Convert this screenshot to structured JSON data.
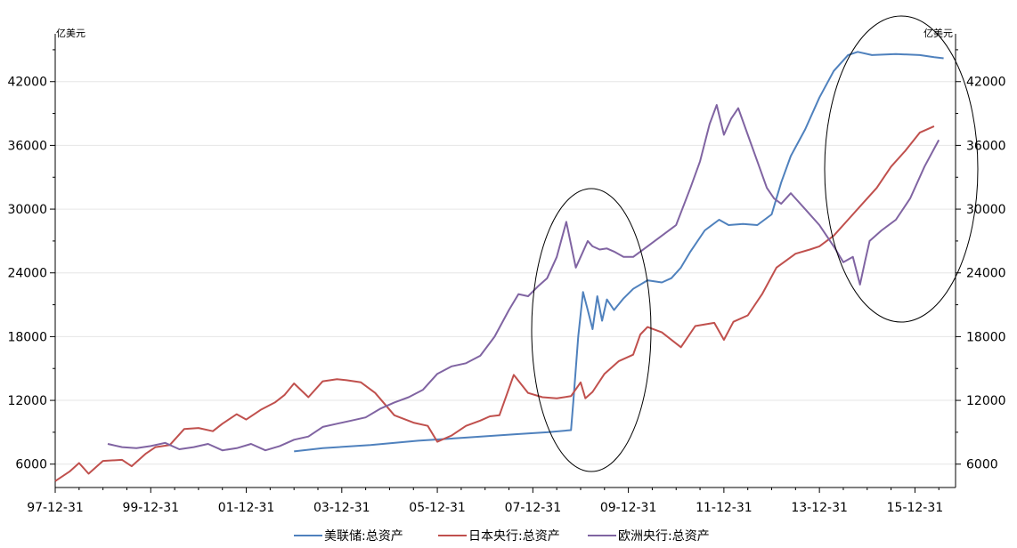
{
  "chart_data": {
    "type": "line",
    "title": "",
    "xlabel": "",
    "ylabel_left": "亿美元",
    "ylabel_right": "亿美元",
    "ylim": [
      3800,
      46500
    ],
    "y_ticks": [
      6000,
      12000,
      18000,
      24000,
      30000,
      36000,
      42000
    ],
    "y_tick_labels": [
      "6000",
      "12000",
      "18000",
      "24000",
      "30000",
      "36000",
      "42000"
    ],
    "x_range": [
      1997.9,
      2016.75
    ],
    "x_ticks": [
      1997.9,
      1999.9,
      2001.9,
      2003.9,
      2005.9,
      2007.9,
      2009.9,
      2011.9,
      2013.9,
      2015.9
    ],
    "x_tick_labels": [
      "97-12-31",
      "99-12-31",
      "01-12-31",
      "03-12-31",
      "05-12-31",
      "07-12-31",
      "09-12-31",
      "11-12-31",
      "13-12-31",
      "15-12-31"
    ],
    "grid": true,
    "legend_position": "bottom",
    "series": [
      {
        "name": "美联储:总资产",
        "color": "#4f81bd",
        "x": [
          2002.9,
          2003.5,
          2004.5,
          2005.5,
          2006.5,
          2007.5,
          2008.2,
          2008.7,
          2008.75,
          2008.85,
          2008.95,
          2009.05,
          2009.15,
          2009.25,
          2009.35,
          2009.45,
          2009.6,
          2009.8,
          2010.0,
          2010.3,
          2010.6,
          2010.8,
          2011.0,
          2011.2,
          2011.5,
          2011.8,
          2012.0,
          2012.3,
          2012.6,
          2012.9,
          2013.1,
          2013.3,
          2013.6,
          2013.9,
          2014.2,
          2014.5,
          2014.7,
          2015.0,
          2015.5,
          2016.0,
          2016.3,
          2016.5
        ],
        "y": [
          7200,
          7500,
          7800,
          8200,
          8500,
          8800,
          9000,
          9200,
          12000,
          18000,
          22200,
          20500,
          18700,
          21800,
          19500,
          21500,
          20500,
          21600,
          22500,
          23300,
          23100,
          23500,
          24500,
          26000,
          28000,
          29000,
          28500,
          28600,
          28500,
          29500,
          32500,
          35000,
          37500,
          40500,
          43000,
          44500,
          44800,
          44500,
          44600,
          44500,
          44300,
          44200
        ]
      },
      {
        "name": "日本央行:总资产",
        "color": "#c0504d",
        "x": [
          1997.9,
          1998.2,
          1998.4,
          1998.6,
          1998.9,
          1999.3,
          1999.5,
          1999.8,
          2000.0,
          2000.3,
          2000.6,
          2000.9,
          2001.2,
          2001.4,
          2001.7,
          2001.9,
          2002.2,
          2002.5,
          2002.7,
          2002.9,
          2003.2,
          2003.5,
          2003.8,
          2004.0,
          2004.3,
          2004.6,
          2005.0,
          2005.4,
          2005.7,
          2005.9,
          2006.2,
          2006.5,
          2006.8,
          2007.0,
          2007.2,
          2007.5,
          2007.8,
          2008.1,
          2008.4,
          2008.7,
          2008.9,
          2009.0,
          2009.15,
          2009.4,
          2009.7,
          2010.0,
          2010.15,
          2010.3,
          2010.6,
          2011.0,
          2011.3,
          2011.7,
          2011.9,
          2012.1,
          2012.4,
          2012.7,
          2013.0,
          2013.4,
          2013.7,
          2013.9,
          2014.2,
          2014.5,
          2014.8,
          2015.1,
          2015.4,
          2015.7,
          2016.0,
          2016.3
        ],
        "y": [
          4400,
          5300,
          6100,
          5100,
          6300,
          6400,
          5800,
          7000,
          7600,
          7800,
          9300,
          9400,
          9100,
          9800,
          10700,
          10200,
          11100,
          11800,
          12500,
          13600,
          12300,
          13800,
          14000,
          13900,
          13700,
          12700,
          10600,
          9900,
          9600,
          8100,
          8700,
          9600,
          10100,
          10500,
          10600,
          14400,
          12700,
          12300,
          12200,
          12400,
          13700,
          12200,
          12800,
          14500,
          15700,
          16300,
          18200,
          18900,
          18400,
          17000,
          19000,
          19300,
          17700,
          19400,
          20000,
          22000,
          24500,
          25800,
          26200,
          26500,
          27500,
          29000,
          30500,
          32000,
          34000,
          35500,
          37200,
          37800
        ]
      },
      {
        "name": "欧洲央行:总资产",
        "color": "#8064a2",
        "x": [
          1999.0,
          1999.3,
          1999.6,
          1999.9,
          2000.2,
          2000.5,
          2000.8,
          2001.1,
          2001.4,
          2001.7,
          2002.0,
          2002.3,
          2002.6,
          2002.9,
          2003.2,
          2003.5,
          2003.8,
          2004.1,
          2004.4,
          2004.7,
          2005.0,
          2005.3,
          2005.6,
          2005.9,
          2006.2,
          2006.5,
          2006.8,
          2007.1,
          2007.4,
          2007.6,
          2007.8,
          2008.0,
          2008.2,
          2008.4,
          2008.6,
          2008.8,
          2008.95,
          2009.05,
          2009.15,
          2009.3,
          2009.45,
          2009.6,
          2009.8,
          2010.0,
          2010.3,
          2010.6,
          2010.9,
          2011.2,
          2011.4,
          2011.6,
          2011.75,
          2011.9,
          2012.05,
          2012.2,
          2012.4,
          2012.6,
          2012.8,
          2012.95,
          2013.1,
          2013.3,
          2013.6,
          2013.9,
          2014.2,
          2014.4,
          2014.6,
          2014.75,
          2014.85,
          2014.95,
          2015.2,
          2015.5,
          2015.8,
          2016.1,
          2016.4
        ],
        "y": [
          7900,
          7600,
          7500,
          7700,
          8000,
          7400,
          7600,
          7900,
          7300,
          7500,
          7900,
          7300,
          7700,
          8300,
          8600,
          9500,
          9800,
          10100,
          10400,
          11200,
          11800,
          12300,
          13000,
          14500,
          15200,
          15500,
          16200,
          18000,
          20500,
          22000,
          21800,
          22700,
          23500,
          25500,
          28800,
          24500,
          26000,
          27000,
          26500,
          26200,
          26300,
          26000,
          25500,
          25500,
          26500,
          27500,
          28500,
          32000,
          34500,
          38000,
          39800,
          37000,
          38500,
          39500,
          37000,
          34500,
          32000,
          31000,
          30500,
          31500,
          30000,
          28500,
          26500,
          25000,
          25500,
          22900,
          25000,
          27000,
          28000,
          29000,
          31000,
          34000,
          36500
        ]
      }
    ]
  }
}
